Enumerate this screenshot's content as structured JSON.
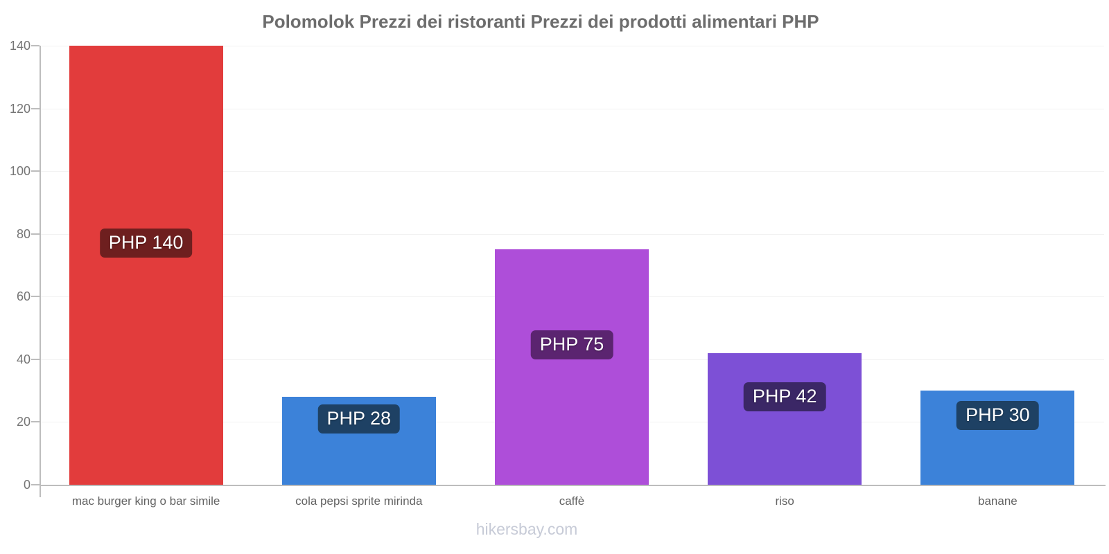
{
  "page": {
    "title": "Polomolok Prezzi dei ristoranti Prezzi dei prodotti alimentari PHP",
    "watermark": "hikersbay.com"
  },
  "chart_data": {
    "type": "bar",
    "title": "Polomolok Prezzi dei ristoranti Prezzi dei prodotti alimentari PHP",
    "categories": [
      "mac burger king o bar simile",
      "cola pepsi sprite mirinda",
      "caffè",
      "riso",
      "banane"
    ],
    "values": [
      140,
      28,
      75,
      42,
      30
    ],
    "value_labels": [
      "PHP 140",
      "PHP 28",
      "PHP 75",
      "PHP 42",
      "PHP 30"
    ],
    "currency": "PHP",
    "xlabel": "",
    "ylabel": "",
    "ylim": [
      0,
      140
    ],
    "yticks": [
      0,
      20,
      40,
      60,
      80,
      100,
      120,
      140
    ],
    "grid": true,
    "legend": false,
    "bar_colors": [
      "#e23c3c",
      "#3c82d9",
      "#ae4ed9",
      "#7d50d6",
      "#3c82d9"
    ],
    "badge_colors": [
      "#6e1f1f",
      "#1e4164",
      "#5b2470",
      "#3b2766",
      "#1e4164"
    ],
    "theme": {
      "background": "#ffffff",
      "axis_color": "#bdbdbd",
      "gridline_color": "#f2f2f2",
      "tick_label_color": "#757575",
      "category_label_color": "#636363",
      "title_color": "#6d6d6d",
      "badge_text_color": "#ffffff",
      "watermark_color": "#c7cbd7"
    }
  }
}
